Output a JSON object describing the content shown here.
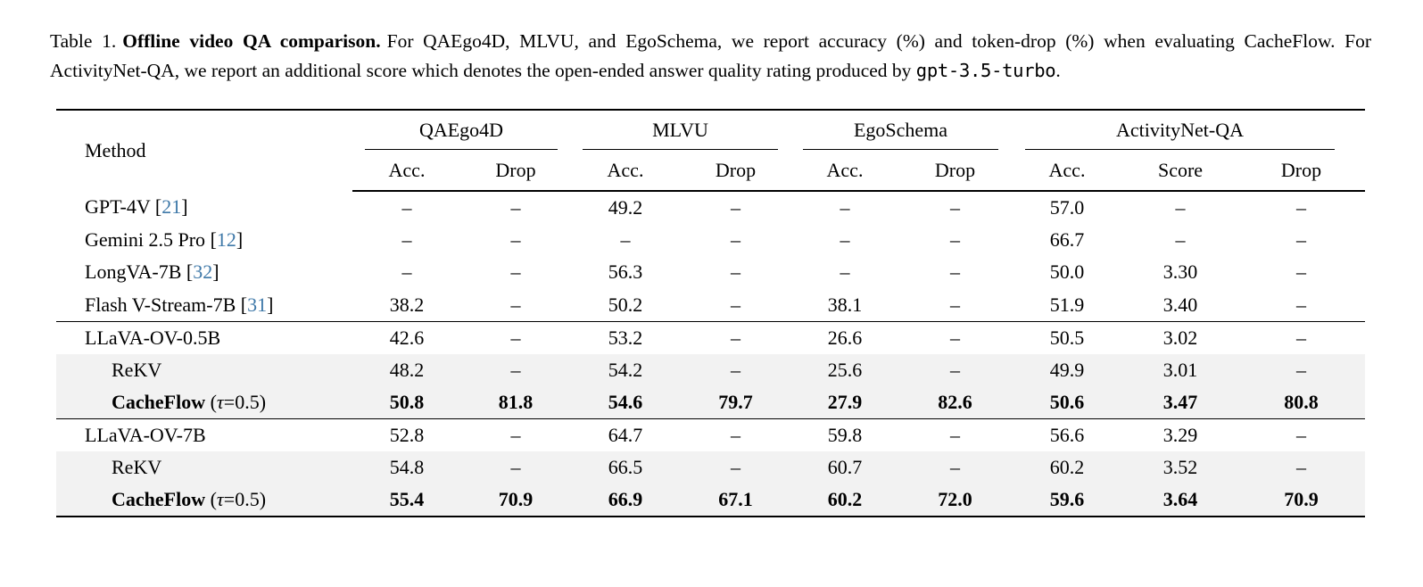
{
  "caption": {
    "label": "Table 1.",
    "title": "Offline video QA comparison.",
    "body_1": "For QAEgo4D, MLVU, and EgoSchema, we report accuracy (%) and token-drop (%) when evaluating CacheFlow. For ActivityNet-QA, we report an additional score which denotes the open-ended answer quality rating produced by",
    "code": "gpt-3.5-turbo",
    "period": "."
  },
  "table": {
    "method_header": "Method",
    "groups": [
      {
        "label": "QAEgo4D",
        "cols": [
          "Acc.",
          "Drop"
        ]
      },
      {
        "label": "MLVU",
        "cols": [
          "Acc.",
          "Drop"
        ]
      },
      {
        "label": "EgoSchema",
        "cols": [
          "Acc.",
          "Drop"
        ]
      },
      {
        "label": "ActivityNet-QA",
        "cols": [
          "Acc.",
          "Score",
          "Drop"
        ]
      }
    ],
    "rows": [
      {
        "method": "GPT-4V",
        "cite": "21",
        "indent": false,
        "bold": false,
        "highlight": false,
        "group_start": false,
        "values": [
          "–",
          "–",
          "49.2",
          "–",
          "–",
          "–",
          "57.0",
          "–",
          "–"
        ]
      },
      {
        "method": "Gemini 2.5 Pro",
        "cite": "12",
        "indent": false,
        "bold": false,
        "highlight": false,
        "group_start": false,
        "values": [
          "–",
          "–",
          "–",
          "–",
          "–",
          "–",
          "66.7",
          "–",
          "–"
        ]
      },
      {
        "method": "LongVA-7B",
        "cite": "32",
        "indent": false,
        "bold": false,
        "highlight": false,
        "group_start": false,
        "values": [
          "–",
          "–",
          "56.3",
          "–",
          "–",
          "–",
          "50.0",
          "3.30",
          "–"
        ]
      },
      {
        "method": "Flash V-Stream-7B",
        "cite": "31",
        "indent": false,
        "bold": false,
        "highlight": false,
        "group_start": false,
        "values": [
          "38.2",
          "–",
          "50.2",
          "–",
          "38.1",
          "–",
          "51.9",
          "3.40",
          "–"
        ]
      },
      {
        "method": "LLaVA-OV-0.5B",
        "cite": "",
        "indent": false,
        "bold": false,
        "highlight": false,
        "group_start": true,
        "values": [
          "42.6",
          "–",
          "53.2",
          "–",
          "26.6",
          "–",
          "50.5",
          "3.02",
          "–"
        ]
      },
      {
        "method": "ReKV",
        "cite": "",
        "indent": true,
        "bold": false,
        "highlight": true,
        "group_start": false,
        "values": [
          "48.2",
          "–",
          "54.2",
          "–",
          "25.6",
          "–",
          "49.9",
          "3.01",
          "–"
        ]
      },
      {
        "method": "CacheFlow",
        "suffix": "(τ=0.5)",
        "cite": "",
        "indent": true,
        "bold": true,
        "highlight": true,
        "group_start": false,
        "values": [
          "50.8",
          "81.8",
          "54.6",
          "79.7",
          "27.9",
          "82.6",
          "50.6",
          "3.47",
          "80.8"
        ]
      },
      {
        "method": "LLaVA-OV-7B",
        "cite": "",
        "indent": false,
        "bold": false,
        "highlight": false,
        "group_start": true,
        "values": [
          "52.8",
          "–",
          "64.7",
          "–",
          "59.8",
          "–",
          "56.6",
          "3.29",
          "–"
        ]
      },
      {
        "method": "ReKV",
        "cite": "",
        "indent": true,
        "bold": false,
        "highlight": true,
        "group_start": false,
        "values": [
          "54.8",
          "–",
          "66.5",
          "–",
          "60.7",
          "–",
          "60.2",
          "3.52",
          "–"
        ]
      },
      {
        "method": "CacheFlow",
        "suffix": "(τ=0.5)",
        "cite": "",
        "indent": true,
        "bold": true,
        "highlight": true,
        "group_start": false,
        "values": [
          "55.4",
          "70.9",
          "66.9",
          "67.1",
          "60.2",
          "72.0",
          "59.6",
          "3.64",
          "70.9"
        ]
      }
    ],
    "colors": {
      "cite_blue": "#3e78a8",
      "highlight_bg": "#f2f2f2",
      "rule_black": "#000000"
    }
  }
}
